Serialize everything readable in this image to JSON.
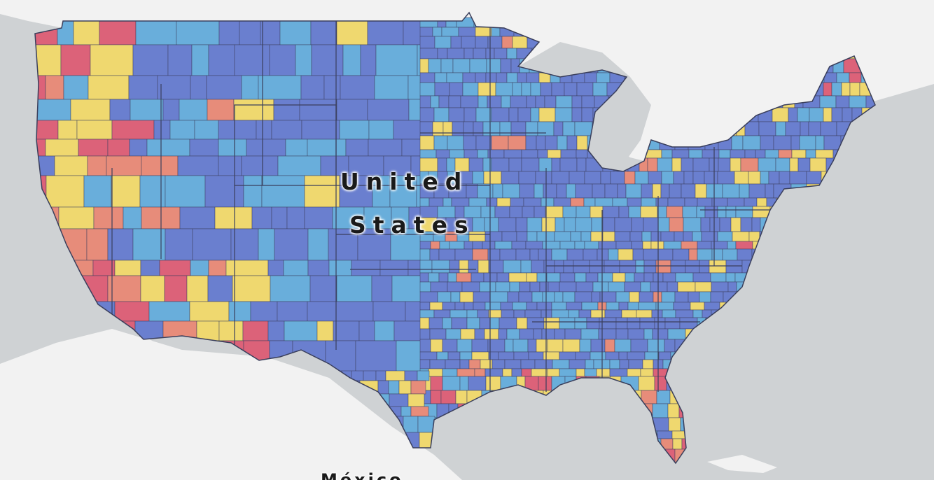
{
  "map": {
    "labels": {
      "country_line1": "United",
      "country_line2": "States",
      "neighbor": "México"
    },
    "colors": {
      "background_land": "#f2f2f2",
      "water": "#cfd2d4",
      "border": "#3a3f5c",
      "choropleth_classes": [
        "#6a7fcf",
        "#69aedb",
        "#efd86f",
        "#e78c7a",
        "#dc6279"
      ]
    }
  }
}
